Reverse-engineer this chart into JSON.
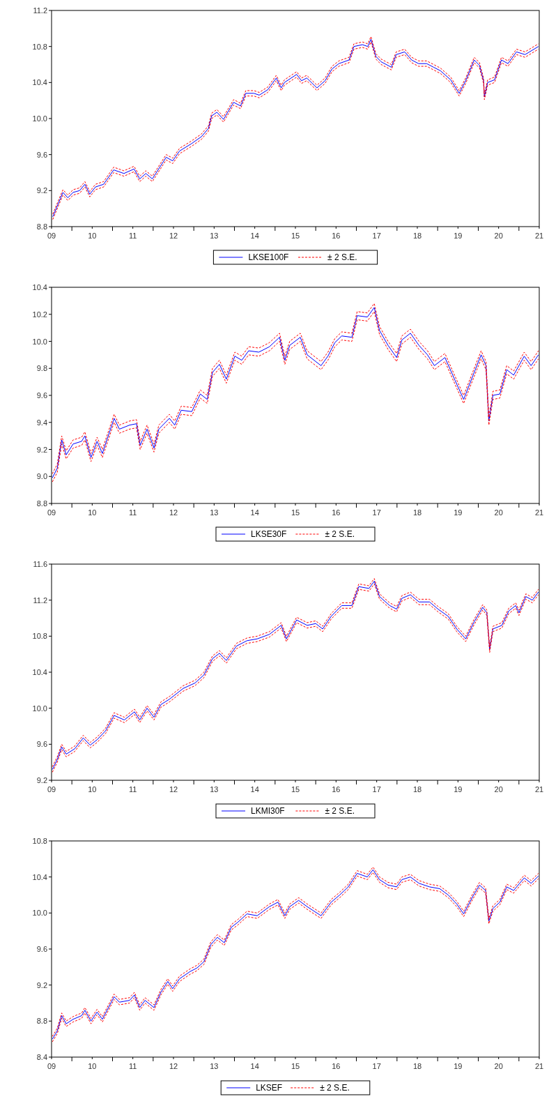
{
  "chart_data": [
    {
      "type": "line",
      "xlim": [
        2009,
        2021
      ],
      "ylim": [
        8.8,
        11.2
      ],
      "legend": "bottom",
      "tick_labels": true,
      "xticks": [
        {
          "value": 2009,
          "label": "09"
        },
        {
          "value": 2010,
          "label": "10"
        },
        {
          "value": 2011,
          "label": "11"
        },
        {
          "value": 2012,
          "label": "12"
        },
        {
          "value": 2013,
          "label": "13"
        },
        {
          "value": 2014,
          "label": "14"
        },
        {
          "value": 2015,
          "label": "15"
        },
        {
          "value": 2016,
          "label": "16"
        },
        {
          "value": 2017,
          "label": "17"
        },
        {
          "value": 2018,
          "label": "18"
        },
        {
          "value": 2019,
          "label": "19"
        },
        {
          "value": 2020,
          "label": "20"
        },
        {
          "value": 2021,
          "label": "21"
        }
      ],
      "yticks": [
        {
          "value": 8.8,
          "label": "8.8"
        },
        {
          "value": 9.2,
          "label": "9.2"
        },
        {
          "value": 9.6,
          "label": "9.6"
        },
        {
          "value": 10,
          "label": "10.0"
        },
        {
          "value": 10.4,
          "label": "10.4"
        },
        {
          "value": 10.8,
          "label": "10.8"
        },
        {
          "value": 11.2,
          "label": "11.2"
        }
      ],
      "x": [
        2009.03,
        2009.15,
        2009.28,
        2009.4,
        2009.53,
        2009.69,
        2009.82,
        2009.94,
        2010.08,
        2010.28,
        2010.53,
        2010.78,
        2011.03,
        2011.17,
        2011.32,
        2011.48,
        2011.82,
        2011.98,
        2012.15,
        2012.44,
        2012.69,
        2012.86,
        2012.94,
        2013.07,
        2013.23,
        2013.48,
        2013.65,
        2013.78,
        2013.98,
        2014.11,
        2014.32,
        2014.53,
        2014.65,
        2014.73,
        2015.03,
        2015.15,
        2015.28,
        2015.53,
        2015.73,
        2015.9,
        2016.07,
        2016.32,
        2016.44,
        2016.65,
        2016.78,
        2016.86,
        2016.98,
        2017.11,
        2017.36,
        2017.48,
        2017.69,
        2017.86,
        2018.03,
        2018.23,
        2018.4,
        2018.57,
        2018.82,
        2019.03,
        2019.19,
        2019.4,
        2019.53,
        2019.63,
        2019.65,
        2019.73,
        2019.9,
        2020.07,
        2020.23,
        2020.44,
        2020.65,
        2020.98
      ],
      "series": [
        {
          "name": "LKSE100F",
          "color": "#0000ff",
          "line_style": "solid",
          "values": [
            8.91,
            9.04,
            9.18,
            9.12,
            9.18,
            9.2,
            9.27,
            9.16,
            9.24,
            9.27,
            9.43,
            9.39,
            9.44,
            9.33,
            9.39,
            9.33,
            9.57,
            9.53,
            9.64,
            9.72,
            9.8,
            9.89,
            10.03,
            10.07,
            9.99,
            10.18,
            10.14,
            10.28,
            10.28,
            10.26,
            10.32,
            10.45,
            10.34,
            10.4,
            10.49,
            10.42,
            10.45,
            10.34,
            10.42,
            10.55,
            10.61,
            10.65,
            10.8,
            10.82,
            10.8,
            10.88,
            10.69,
            10.63,
            10.57,
            10.71,
            10.74,
            10.65,
            10.61,
            10.61,
            10.57,
            10.53,
            10.43,
            10.28,
            10.42,
            10.65,
            10.59,
            10.42,
            10.24,
            10.4,
            10.43,
            10.65,
            10.61,
            10.74,
            10.71,
            10.8
          ]
        },
        {
          "name": "± 2 S.E.",
          "color": "#ff0000",
          "line_style": "dashed",
          "values": [
            8.94,
            9.07,
            9.21,
            9.15,
            9.21,
            9.23,
            9.3,
            9.19,
            9.27,
            9.3,
            9.46,
            9.42,
            9.47,
            9.36,
            9.42,
            9.36,
            9.6,
            9.56,
            9.67,
            9.75,
            9.83,
            9.92,
            10.06,
            10.1,
            10.02,
            10.21,
            10.17,
            10.31,
            10.31,
            10.29,
            10.35,
            10.48,
            10.37,
            10.43,
            10.52,
            10.45,
            10.48,
            10.37,
            10.45,
            10.58,
            10.64,
            10.68,
            10.83,
            10.85,
            10.83,
            10.91,
            10.72,
            10.66,
            10.6,
            10.74,
            10.77,
            10.68,
            10.64,
            10.64,
            10.6,
            10.56,
            10.46,
            10.31,
            10.45,
            10.68,
            10.62,
            10.45,
            10.27,
            10.43,
            10.46,
            10.68,
            10.64,
            10.77,
            10.74,
            10.83
          ]
        },
        {
          "color": "#ff0000",
          "line_style": "dashed",
          "values": [
            8.88,
            9.01,
            9.15,
            9.09,
            9.15,
            9.17,
            9.24,
            9.13,
            9.21,
            9.24,
            9.4,
            9.36,
            9.41,
            9.3,
            9.36,
            9.3,
            9.54,
            9.5,
            9.61,
            9.69,
            9.77,
            9.86,
            10.0,
            10.04,
            9.96,
            10.15,
            10.11,
            10.25,
            10.25,
            10.23,
            10.29,
            10.42,
            10.31,
            10.37,
            10.46,
            10.39,
            10.42,
            10.31,
            10.39,
            10.52,
            10.58,
            10.62,
            10.77,
            10.79,
            10.77,
            10.85,
            10.66,
            10.6,
            10.54,
            10.68,
            10.71,
            10.62,
            10.58,
            10.58,
            10.54,
            10.5,
            10.4,
            10.25,
            10.39,
            10.62,
            10.56,
            10.39,
            10.21,
            10.37,
            10.4,
            10.62,
            10.58,
            10.71,
            10.68,
            10.77
          ]
        }
      ]
    },
    {
      "type": "line",
      "xlim": [
        2009,
        2021
      ],
      "ylim": [
        8.8,
        10.4
      ],
      "legend": "bottom",
      "tick_labels": true,
      "xticks": [
        {
          "value": 2009,
          "label": "09"
        },
        {
          "value": 2010,
          "label": "10"
        },
        {
          "value": 2011,
          "label": "11"
        },
        {
          "value": 2012,
          "label": "12"
        },
        {
          "value": 2013,
          "label": "13"
        },
        {
          "value": 2014,
          "label": "14"
        },
        {
          "value": 2015,
          "label": "15"
        },
        {
          "value": 2016,
          "label": "16"
        },
        {
          "value": 2017,
          "label": "17"
        },
        {
          "value": 2018,
          "label": "18"
        },
        {
          "value": 2019,
          "label": "19"
        },
        {
          "value": 2020,
          "label": "20"
        },
        {
          "value": 2021,
          "label": "21"
        }
      ],
      "yticks": [
        {
          "value": 8.8,
          "label": "8.8"
        },
        {
          "value": 9.0,
          "label": "9.0"
        },
        {
          "value": 9.2,
          "label": "9.2"
        },
        {
          "value": 9.4,
          "label": "9.4"
        },
        {
          "value": 9.6,
          "label": "9.6"
        },
        {
          "value": 9.8,
          "label": "9.8"
        },
        {
          "value": 10,
          "label": "10.0"
        },
        {
          "value": 10.2,
          "label": "10.2"
        },
        {
          "value": 10.4,
          "label": "10.4"
        }
      ],
      "x": [
        2009.02,
        2009.14,
        2009.25,
        2009.36,
        2009.53,
        2009.74,
        2009.82,
        2009.97,
        2010.12,
        2010.25,
        2010.54,
        2010.67,
        2010.92,
        2011.09,
        2011.18,
        2011.35,
        2011.52,
        2011.64,
        2011.9,
        2012.03,
        2012.19,
        2012.45,
        2012.66,
        2012.83,
        2012.96,
        2013.13,
        2013.3,
        2013.51,
        2013.68,
        2013.85,
        2014.1,
        2014.36,
        2014.61,
        2014.74,
        2014.86,
        2015.12,
        2015.29,
        2015.63,
        2015.8,
        2015.97,
        2016.14,
        2016.39,
        2016.52,
        2016.77,
        2016.94,
        2017.07,
        2017.28,
        2017.49,
        2017.62,
        2017.83,
        2018.04,
        2018.25,
        2018.42,
        2018.68,
        2018.93,
        2019.14,
        2019.36,
        2019.57,
        2019.69,
        2019.76,
        2019.86,
        2020.03,
        2020.2,
        2020.37,
        2020.63,
        2020.8,
        2020.98
      ],
      "series": [
        {
          "name": "LKSE30F",
          "color": "#0000ff",
          "line_style": "solid",
          "values": [
            8.99,
            9.06,
            9.27,
            9.16,
            9.24,
            9.26,
            9.3,
            9.14,
            9.26,
            9.17,
            9.43,
            9.35,
            9.38,
            9.39,
            9.23,
            9.35,
            9.21,
            9.35,
            9.43,
            9.38,
            9.49,
            9.48,
            9.61,
            9.57,
            9.77,
            9.83,
            9.72,
            9.89,
            9.86,
            9.93,
            9.92,
            9.96,
            10.03,
            9.86,
            9.97,
            10.03,
            9.9,
            9.82,
            9.89,
            9.99,
            10.04,
            10.03,
            10.19,
            10.18,
            10.25,
            10.08,
            9.97,
            9.88,
            10.01,
            10.06,
            9.97,
            9.9,
            9.82,
            9.88,
            9.71,
            9.57,
            9.74,
            9.9,
            9.82,
            9.41,
            9.6,
            9.61,
            9.79,
            9.75,
            9.89,
            9.82,
            9.9
          ]
        },
        {
          "name": "± 2 S.E.",
          "color": "#ff0000",
          "line_style": "dashed",
          "values": [
            9.02,
            9.09,
            9.3,
            9.19,
            9.27,
            9.29,
            9.33,
            9.17,
            9.29,
            9.2,
            9.46,
            9.38,
            9.41,
            9.42,
            9.26,
            9.38,
            9.24,
            9.38,
            9.46,
            9.41,
            9.52,
            9.51,
            9.64,
            9.6,
            9.8,
            9.86,
            9.75,
            9.92,
            9.89,
            9.96,
            9.95,
            9.99,
            10.06,
            9.89,
            10.0,
            10.06,
            9.93,
            9.85,
            9.92,
            10.02,
            10.07,
            10.06,
            10.22,
            10.21,
            10.28,
            10.11,
            10.0,
            9.91,
            10.04,
            10.09,
            10.0,
            9.93,
            9.85,
            9.91,
            9.74,
            9.6,
            9.77,
            9.93,
            9.85,
            9.44,
            9.63,
            9.64,
            9.82,
            9.78,
            9.92,
            9.85,
            9.93
          ]
        },
        {
          "color": "#ff0000",
          "line_style": "dashed",
          "values": [
            8.96,
            9.03,
            9.24,
            9.13,
            9.21,
            9.23,
            9.27,
            9.11,
            9.23,
            9.14,
            9.4,
            9.32,
            9.35,
            9.36,
            9.2,
            9.32,
            9.18,
            9.32,
            9.4,
            9.35,
            9.46,
            9.45,
            9.58,
            9.54,
            9.74,
            9.8,
            9.69,
            9.86,
            9.83,
            9.9,
            9.89,
            9.93,
            10.0,
            9.83,
            9.94,
            10.0,
            9.87,
            9.79,
            9.86,
            9.96,
            10.01,
            10.0,
            10.16,
            10.15,
            10.22,
            10.05,
            9.94,
            9.85,
            9.98,
            10.03,
            9.94,
            9.87,
            9.79,
            9.85,
            9.68,
            9.54,
            9.71,
            9.87,
            9.79,
            9.38,
            9.57,
            9.58,
            9.76,
            9.72,
            9.86,
            9.79,
            9.87
          ]
        }
      ]
    },
    {
      "type": "line",
      "xlim": [
        2009,
        2021
      ],
      "ylim": [
        9.2,
        11.6
      ],
      "legend": "bottom",
      "tick_labels": true,
      "xticks": [
        {
          "value": 2009,
          "label": "09"
        },
        {
          "value": 2010,
          "label": "10"
        },
        {
          "value": 2011,
          "label": "11"
        },
        {
          "value": 2012,
          "label": "12"
        },
        {
          "value": 2013,
          "label": "13"
        },
        {
          "value": 2014,
          "label": "14"
        },
        {
          "value": 2015,
          "label": "15"
        },
        {
          "value": 2016,
          "label": "16"
        },
        {
          "value": 2017,
          "label": "17"
        },
        {
          "value": 2018,
          "label": "18"
        },
        {
          "value": 2019,
          "label": "19"
        },
        {
          "value": 2020,
          "label": "20"
        },
        {
          "value": 2021,
          "label": "21"
        }
      ],
      "yticks": [
        {
          "value": 9.2,
          "label": "9.2"
        },
        {
          "value": 9.6,
          "label": "9.6"
        },
        {
          "value": 10,
          "label": "10.0"
        },
        {
          "value": 10.4,
          "label": "10.4"
        },
        {
          "value": 10.8,
          "label": "10.8"
        },
        {
          "value": 11.2,
          "label": "11.2"
        },
        {
          "value": 11.6,
          "label": "11.6"
        }
      ],
      "x": [
        2009.02,
        2009.14,
        2009.25,
        2009.36,
        2009.57,
        2009.78,
        2009.95,
        2010.12,
        2010.33,
        2010.54,
        2010.79,
        2011.04,
        2011.17,
        2011.35,
        2011.52,
        2011.69,
        2011.9,
        2012.24,
        2012.53,
        2012.75,
        2012.96,
        2013.13,
        2013.3,
        2013.55,
        2013.81,
        2014.06,
        2014.36,
        2014.65,
        2014.78,
        2015.03,
        2015.29,
        2015.5,
        2015.67,
        2015.88,
        2016.14,
        2016.39,
        2016.56,
        2016.81,
        2016.94,
        2017.07,
        2017.32,
        2017.49,
        2017.62,
        2017.83,
        2018.04,
        2018.3,
        2018.51,
        2018.76,
        2018.97,
        2019.19,
        2019.4,
        2019.61,
        2019.71,
        2019.78,
        2019.86,
        2020.08,
        2020.25,
        2020.42,
        2020.5,
        2020.67,
        2020.83,
        2020.98
      ],
      "series": [
        {
          "name": "LKMI30F",
          "color": "#0000ff",
          "line_style": "solid",
          "values": [
            9.32,
            9.43,
            9.57,
            9.49,
            9.55,
            9.67,
            9.59,
            9.65,
            9.75,
            9.92,
            9.87,
            9.96,
            9.87,
            10.0,
            9.9,
            10.04,
            10.1,
            10.22,
            10.28,
            10.37,
            10.55,
            10.61,
            10.53,
            10.69,
            10.75,
            10.77,
            10.82,
            10.92,
            10.77,
            10.98,
            10.92,
            10.94,
            10.88,
            11.02,
            11.14,
            11.14,
            11.35,
            11.33,
            11.41,
            11.24,
            11.14,
            11.1,
            11.22,
            11.26,
            11.18,
            11.18,
            11.1,
            11.02,
            10.88,
            10.77,
            10.96,
            11.12,
            11.06,
            10.65,
            10.88,
            10.92,
            11.08,
            11.14,
            11.06,
            11.24,
            11.2,
            11.29
          ]
        },
        {
          "name": "± 2 S.E.",
          "color": "#ff0000",
          "line_style": "dashed",
          "values": [
            9.35,
            9.46,
            9.6,
            9.52,
            9.58,
            9.7,
            9.62,
            9.68,
            9.78,
            9.95,
            9.9,
            9.99,
            9.9,
            10.03,
            9.93,
            10.07,
            10.13,
            10.25,
            10.31,
            10.4,
            10.58,
            10.64,
            10.56,
            10.72,
            10.78,
            10.8,
            10.85,
            10.95,
            10.8,
            11.01,
            10.95,
            10.97,
            10.91,
            11.05,
            11.17,
            11.17,
            11.38,
            11.36,
            11.44,
            11.27,
            11.17,
            11.13,
            11.25,
            11.29,
            11.21,
            11.21,
            11.13,
            11.05,
            10.91,
            10.8,
            10.99,
            11.15,
            11.09,
            10.68,
            10.91,
            10.95,
            11.11,
            11.17,
            11.09,
            11.27,
            11.23,
            11.32
          ]
        },
        {
          "color": "#ff0000",
          "line_style": "dashed",
          "values": [
            9.29,
            9.4,
            9.54,
            9.46,
            9.52,
            9.64,
            9.56,
            9.62,
            9.72,
            9.89,
            9.84,
            9.93,
            9.84,
            9.97,
            9.87,
            10.01,
            10.07,
            10.19,
            10.25,
            10.34,
            10.52,
            10.58,
            10.5,
            10.66,
            10.72,
            10.74,
            10.79,
            10.89,
            10.74,
            10.95,
            10.89,
            10.91,
            10.85,
            10.99,
            11.11,
            11.11,
            11.32,
            11.3,
            11.38,
            11.21,
            11.11,
            11.07,
            11.19,
            11.23,
            11.15,
            11.15,
            11.07,
            10.99,
            10.85,
            10.74,
            10.93,
            11.09,
            11.03,
            10.62,
            10.85,
            10.89,
            11.05,
            11.11,
            11.03,
            11.21,
            11.17,
            11.26
          ]
        }
      ]
    },
    {
      "type": "line",
      "xlim": [
        2009,
        2021
      ],
      "ylim": [
        8.4,
        10.8
      ],
      "legend": "bottom",
      "tick_labels": true,
      "xticks": [
        {
          "value": 2009,
          "label": "09"
        },
        {
          "value": 2010,
          "label": "10"
        },
        {
          "value": 2011,
          "label": "11"
        },
        {
          "value": 2012,
          "label": "12"
        },
        {
          "value": 2013,
          "label": "13"
        },
        {
          "value": 2014,
          "label": "14"
        },
        {
          "value": 2015,
          "label": "15"
        },
        {
          "value": 2016,
          "label": "16"
        },
        {
          "value": 2017,
          "label": "17"
        },
        {
          "value": 2018,
          "label": "18"
        },
        {
          "value": 2019,
          "label": "19"
        },
        {
          "value": 2020,
          "label": "20"
        },
        {
          "value": 2021,
          "label": "21"
        }
      ],
      "yticks": [
        {
          "value": 8.4,
          "label": "8.4"
        },
        {
          "value": 8.8,
          "label": "8.8"
        },
        {
          "value": 9.2,
          "label": "9.2"
        },
        {
          "value": 9.6,
          "label": "9.6"
        },
        {
          "value": 10,
          "label": "10.0"
        },
        {
          "value": 10.4,
          "label": "10.4"
        },
        {
          "value": 10.8,
          "label": "10.8"
        }
      ],
      "x": [
        2009.02,
        2009.14,
        2009.25,
        2009.36,
        2009.53,
        2009.74,
        2009.82,
        2009.97,
        2010.12,
        2010.25,
        2010.54,
        2010.67,
        2010.92,
        2011.04,
        2011.17,
        2011.3,
        2011.52,
        2011.69,
        2011.86,
        2011.98,
        2012.15,
        2012.41,
        2012.58,
        2012.75,
        2012.92,
        2013.08,
        2013.25,
        2013.42,
        2013.59,
        2013.81,
        2014.06,
        2014.36,
        2014.57,
        2014.74,
        2014.86,
        2015.08,
        2015.29,
        2015.63,
        2015.88,
        2016.09,
        2016.3,
        2016.52,
        2016.77,
        2016.91,
        2017.07,
        2017.28,
        2017.49,
        2017.62,
        2017.83,
        2018.04,
        2018.3,
        2018.55,
        2018.76,
        2018.97,
        2019.14,
        2019.36,
        2019.53,
        2019.68,
        2019.76,
        2019.86,
        2020.03,
        2020.2,
        2020.37,
        2020.63,
        2020.8,
        2020.98
      ],
      "series": [
        {
          "name": "LKSEF",
          "color": "#0000ff",
          "line_style": "solid",
          "values": [
            8.6,
            8.69,
            8.86,
            8.77,
            8.82,
            8.86,
            8.92,
            8.8,
            8.9,
            8.82,
            9.07,
            9.01,
            9.03,
            9.09,
            8.95,
            9.03,
            8.95,
            9.12,
            9.24,
            9.16,
            9.27,
            9.35,
            9.39,
            9.46,
            9.65,
            9.73,
            9.67,
            9.84,
            9.9,
            9.99,
            9.97,
            10.07,
            10.12,
            9.97,
            10.07,
            10.14,
            10.07,
            9.97,
            10.12,
            10.2,
            10.29,
            10.44,
            10.4,
            10.48,
            10.37,
            10.31,
            10.29,
            10.37,
            10.4,
            10.33,
            10.29,
            10.27,
            10.2,
            10.1,
            9.99,
            10.18,
            10.31,
            10.25,
            9.91,
            10.05,
            10.12,
            10.29,
            10.25,
            10.39,
            10.33,
            10.41
          ]
        },
        {
          "name": "± 2 S.E.",
          "color": "#ff0000",
          "line_style": "dashed",
          "values": [
            8.63,
            8.72,
            8.89,
            8.8,
            8.85,
            8.89,
            8.95,
            8.83,
            8.93,
            8.85,
            9.1,
            9.04,
            9.06,
            9.12,
            8.98,
            9.06,
            8.98,
            9.15,
            9.27,
            9.19,
            9.3,
            9.38,
            9.42,
            9.49,
            9.68,
            9.76,
            9.7,
            9.87,
            9.93,
            10.02,
            10.0,
            10.1,
            10.15,
            10.0,
            10.1,
            10.17,
            10.1,
            10.0,
            10.15,
            10.23,
            10.32,
            10.47,
            10.43,
            10.51,
            10.4,
            10.34,
            10.32,
            10.4,
            10.43,
            10.36,
            10.32,
            10.3,
            10.23,
            10.13,
            10.02,
            10.21,
            10.34,
            10.28,
            9.94,
            10.08,
            10.15,
            10.32,
            10.28,
            10.42,
            10.36,
            10.44
          ]
        },
        {
          "color": "#ff0000",
          "line_style": "dashed",
          "values": [
            8.57,
            8.66,
            8.83,
            8.74,
            8.79,
            8.83,
            8.89,
            8.77,
            8.87,
            8.79,
            9.04,
            8.98,
            9.0,
            9.06,
            8.92,
            9.0,
            8.92,
            9.09,
            9.21,
            9.13,
            9.24,
            9.32,
            9.36,
            9.43,
            9.62,
            9.7,
            9.64,
            9.81,
            9.87,
            9.96,
            9.94,
            10.04,
            10.09,
            9.94,
            10.04,
            10.11,
            10.04,
            9.94,
            10.09,
            10.17,
            10.26,
            10.41,
            10.37,
            10.45,
            10.34,
            10.28,
            10.26,
            10.34,
            10.37,
            10.3,
            10.26,
            10.24,
            10.17,
            10.07,
            9.96,
            10.15,
            10.28,
            10.22,
            9.88,
            10.02,
            10.09,
            10.26,
            10.22,
            10.36,
            10.3,
            10.38
          ]
        }
      ]
    }
  ]
}
